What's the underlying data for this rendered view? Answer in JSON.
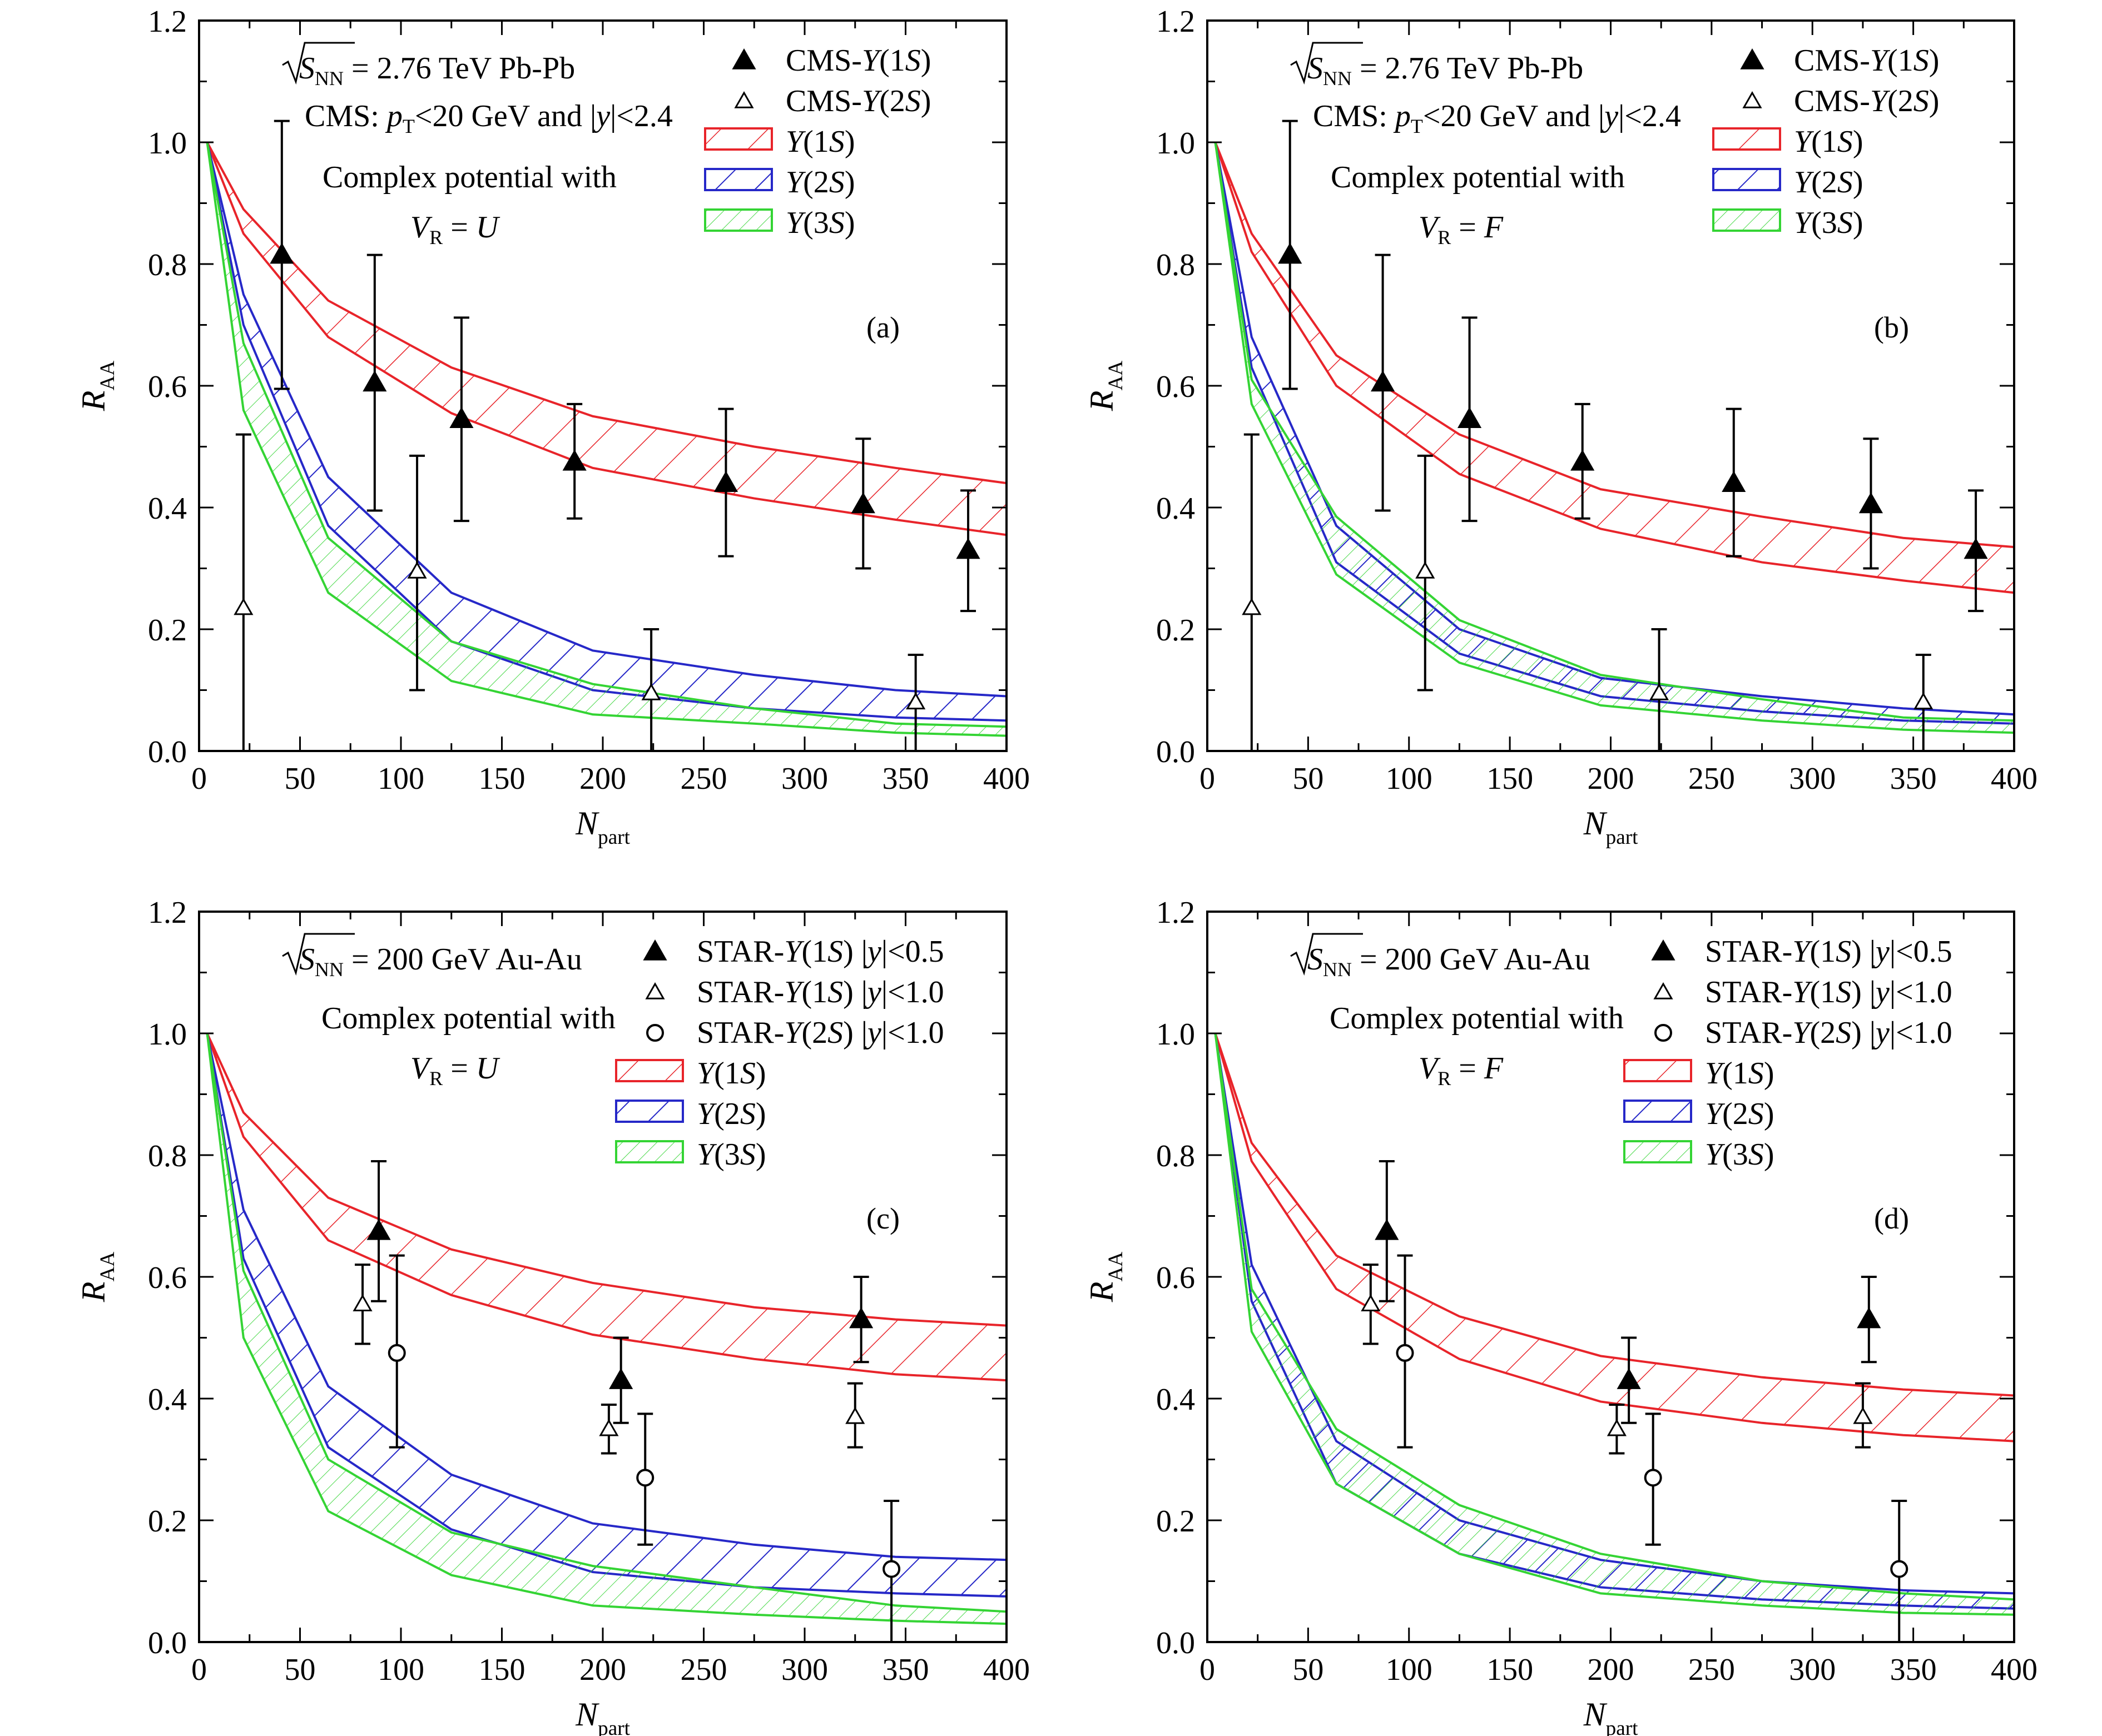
{
  "colors": {
    "y1s": "#e8242a",
    "y2s": "#2628c8",
    "y3s": "#34d434",
    "data": "#000000"
  },
  "chart_data": [
    {
      "type": "area",
      "panel_label": "(a)",
      "energy": "= 2.76 TeV   Pb-Pb",
      "cut": "CMS: pT<20 GeV and |y|<2.4",
      "text1": "Complex potential with",
      "text2": "V_R = U",
      "xlabel": "N_part",
      "ylabel": "R_AA",
      "xlim": [
        0,
        400
      ],
      "ylim": [
        0,
        1.2
      ],
      "xticks": [
        "0",
        "50",
        "100",
        "150",
        "200",
        "250",
        "300",
        "350",
        "400"
      ],
      "yticks": [
        "0.0",
        "0.2",
        "0.4",
        "0.6",
        "0.8",
        "1.0",
        "1.2"
      ],
      "x": [
        4,
        22,
        64,
        125,
        195,
        275,
        345,
        400
      ],
      "bands": [
        {
          "name": "Y(1S)",
          "upper": [
            1.0,
            0.89,
            0.74,
            0.63,
            0.55,
            0.5,
            0.465,
            0.44
          ],
          "lower": [
            1.0,
            0.85,
            0.68,
            0.555,
            0.465,
            0.415,
            0.38,
            0.355
          ]
        },
        {
          "name": "Y(2S)",
          "upper": [
            1.0,
            0.75,
            0.45,
            0.26,
            0.165,
            0.125,
            0.1,
            0.09
          ],
          "lower": [
            1.0,
            0.7,
            0.37,
            0.18,
            0.1,
            0.07,
            0.055,
            0.05
          ]
        },
        {
          "name": "Y(3S)",
          "upper": [
            1.0,
            0.67,
            0.35,
            0.18,
            0.11,
            0.07,
            0.045,
            0.04
          ],
          "lower": [
            1.0,
            0.56,
            0.26,
            0.115,
            0.06,
            0.045,
            0.03,
            0.025
          ]
        }
      ],
      "data_series": [
        {
          "name": "CMS-Y(1S)",
          "marker": "filled-triangle",
          "points": [
            {
              "x": 41,
              "y": 0.815,
              "lo": 0.595,
              "hi": 1.035
            },
            {
              "x": 87,
              "y": 0.605,
              "lo": 0.395,
              "hi": 0.815
            },
            {
              "x": 130,
              "y": 0.545,
              "lo": 0.378,
              "hi": 0.712
            },
            {
              "x": 186,
              "y": 0.475,
              "lo": 0.382,
              "hi": 0.57
            },
            {
              "x": 261,
              "y": 0.44,
              "lo": 0.32,
              "hi": 0.562
            },
            {
              "x": 329,
              "y": 0.405,
              "lo": 0.3,
              "hi": 0.513
            },
            {
              "x": 381,
              "y": 0.33,
              "lo": 0.23,
              "hi": 0.428
            }
          ]
        },
        {
          "name": "CMS-Y(2S)",
          "marker": "open-triangle",
          "points": [
            {
              "x": 22,
              "y": 0.235,
              "lo": 0.0,
              "hi": 0.52
            },
            {
              "x": 108,
              "y": 0.295,
              "lo": 0.1,
              "hi": 0.485
            },
            {
              "x": 224,
              "y": 0.095,
              "lo": 0.0,
              "hi": 0.2
            },
            {
              "x": 355,
              "y": 0.08,
              "lo": 0.0,
              "hi": 0.158
            }
          ]
        }
      ],
      "legend": [
        "CMS-Y(1S)",
        "CMS-Y(2S)",
        "Y(1S)",
        "Y(2S)",
        "Y(3S)"
      ]
    },
    {
      "type": "area",
      "panel_label": "(b)",
      "energy": "= 2.76 TeV   Pb-Pb",
      "cut": "CMS: pT<20 GeV and |y|<2.4",
      "text1": "Complex potential with",
      "text2": "V_R = F",
      "xlabel": "N_part",
      "ylabel": "R_AA",
      "xlim": [
        0,
        400
      ],
      "ylim": [
        0,
        1.2
      ],
      "xticks": [
        "0",
        "50",
        "100",
        "150",
        "200",
        "250",
        "300",
        "350",
        "400"
      ],
      "yticks": [
        "0.0",
        "0.2",
        "0.4",
        "0.6",
        "0.8",
        "1.0",
        "1.2"
      ],
      "x": [
        4,
        22,
        64,
        125,
        195,
        275,
        345,
        400
      ],
      "bands": [
        {
          "name": "Y(1S)",
          "upper": [
            1.0,
            0.85,
            0.65,
            0.52,
            0.43,
            0.385,
            0.35,
            0.335
          ],
          "lower": [
            1.0,
            0.82,
            0.6,
            0.455,
            0.365,
            0.31,
            0.28,
            0.26
          ]
        },
        {
          "name": "Y(2S)",
          "upper": [
            1.0,
            0.68,
            0.37,
            0.2,
            0.12,
            0.09,
            0.07,
            0.06
          ],
          "lower": [
            1.0,
            0.63,
            0.31,
            0.16,
            0.09,
            0.065,
            0.05,
            0.045
          ]
        },
        {
          "name": "Y(3S)",
          "upper": [
            1.0,
            0.61,
            0.385,
            0.215,
            0.125,
            0.085,
            0.055,
            0.05
          ],
          "lower": [
            1.0,
            0.57,
            0.29,
            0.145,
            0.075,
            0.05,
            0.035,
            0.03
          ]
        }
      ],
      "data_series": [
        {
          "name": "CMS-Y(1S)",
          "marker": "filled-triangle",
          "points": [
            {
              "x": 41,
              "y": 0.815,
              "lo": 0.595,
              "hi": 1.035
            },
            {
              "x": 87,
              "y": 0.605,
              "lo": 0.395,
              "hi": 0.815
            },
            {
              "x": 130,
              "y": 0.545,
              "lo": 0.378,
              "hi": 0.712
            },
            {
              "x": 186,
              "y": 0.475,
              "lo": 0.382,
              "hi": 0.57
            },
            {
              "x": 261,
              "y": 0.44,
              "lo": 0.32,
              "hi": 0.562
            },
            {
              "x": 329,
              "y": 0.405,
              "lo": 0.3,
              "hi": 0.513
            },
            {
              "x": 381,
              "y": 0.33,
              "lo": 0.23,
              "hi": 0.428
            }
          ]
        },
        {
          "name": "CMS-Y(2S)",
          "marker": "open-triangle",
          "points": [
            {
              "x": 22,
              "y": 0.235,
              "lo": 0.0,
              "hi": 0.52
            },
            {
              "x": 108,
              "y": 0.295,
              "lo": 0.1,
              "hi": 0.485
            },
            {
              "x": 224,
              "y": 0.095,
              "lo": 0.0,
              "hi": 0.2
            },
            {
              "x": 355,
              "y": 0.08,
              "lo": 0.0,
              "hi": 0.158
            }
          ]
        }
      ],
      "legend": [
        "CMS-Y(1S)",
        "CMS-Y(2S)",
        "Y(1S)",
        "Y(2S)",
        "Y(3S)"
      ]
    },
    {
      "type": "area",
      "panel_label": "(c)",
      "energy": "= 200 GeV   Au-Au",
      "cut": "",
      "text1": "Complex potential with",
      "text2": "V_R = U",
      "xlabel": "N_part",
      "ylabel": "R_AA",
      "xlim": [
        0,
        400
      ],
      "ylim": [
        0,
        1.2
      ],
      "xticks": [
        "0",
        "50",
        "100",
        "150",
        "200",
        "250",
        "300",
        "350",
        "400"
      ],
      "yticks": [
        "0.0",
        "0.2",
        "0.4",
        "0.6",
        "0.8",
        "1.0",
        "1.2"
      ],
      "x": [
        4,
        22,
        64,
        125,
        195,
        275,
        345,
        400
      ],
      "bands": [
        {
          "name": "Y(1S)",
          "upper": [
            1.0,
            0.87,
            0.73,
            0.645,
            0.59,
            0.55,
            0.53,
            0.52
          ],
          "lower": [
            1.0,
            0.83,
            0.66,
            0.57,
            0.505,
            0.465,
            0.44,
            0.43
          ]
        },
        {
          "name": "Y(2S)",
          "upper": [
            1.0,
            0.71,
            0.42,
            0.275,
            0.195,
            0.16,
            0.14,
            0.135
          ],
          "lower": [
            1.0,
            0.63,
            0.32,
            0.185,
            0.115,
            0.09,
            0.08,
            0.075
          ]
        },
        {
          "name": "Y(3S)",
          "upper": [
            1.0,
            0.61,
            0.3,
            0.18,
            0.125,
            0.09,
            0.06,
            0.05
          ],
          "lower": [
            1.0,
            0.5,
            0.215,
            0.11,
            0.06,
            0.045,
            0.035,
            0.03
          ]
        }
      ],
      "data_series": [
        {
          "name": "STAR-Y(1S) |y|<0.5",
          "marker": "filled-triangle",
          "points": [
            {
              "x": 89,
              "y": 0.675,
              "lo": 0.56,
              "hi": 0.79
            },
            {
              "x": 209,
              "y": 0.43,
              "lo": 0.36,
              "hi": 0.5
            },
            {
              "x": 328,
              "y": 0.53,
              "lo": 0.46,
              "hi": 0.6
            }
          ]
        },
        {
          "name": "STAR-Y(1S) |y|<1.0",
          "marker": "open-triangle",
          "points": [
            {
              "x": 81,
              "y": 0.555,
              "lo": 0.49,
              "hi": 0.62
            },
            {
              "x": 203,
              "y": 0.35,
              "lo": 0.31,
              "hi": 0.39
            },
            {
              "x": 325,
              "y": 0.37,
              "lo": 0.32,
              "hi": 0.425
            }
          ]
        },
        {
          "name": "STAR-Y(2S) |y|<1.0",
          "marker": "open-circle",
          "points": [
            {
              "x": 98,
              "y": 0.475,
              "lo": 0.32,
              "hi": 0.635
            },
            {
              "x": 221,
              "y": 0.27,
              "lo": 0.16,
              "hi": 0.375
            },
            {
              "x": 343,
              "y": 0.12,
              "lo": 0.0,
              "hi": 0.232
            }
          ]
        }
      ],
      "legend": [
        "STAR-Y(1S) |y|<0.5",
        "STAR-Y(1S) |y|<1.0",
        "STAR-Y(2S) |y|<1.0",
        "Y(1S)",
        "Y(2S)",
        "Y(3S)"
      ]
    },
    {
      "type": "area",
      "panel_label": "(d)",
      "energy": "= 200 GeV   Au-Au",
      "cut": "",
      "text1": "Complex potential with",
      "text2": "V_R = F",
      "xlabel": "N_part",
      "ylabel": "R_AA",
      "xlim": [
        0,
        400
      ],
      "ylim": [
        0,
        1.2
      ],
      "xticks": [
        "0",
        "50",
        "100",
        "150",
        "200",
        "250",
        "300",
        "350",
        "400"
      ],
      "yticks": [
        "0.0",
        "0.2",
        "0.4",
        "0.6",
        "0.8",
        "1.0",
        "1.2"
      ],
      "x": [
        4,
        22,
        64,
        125,
        195,
        275,
        345,
        400
      ],
      "bands": [
        {
          "name": "Y(1S)",
          "upper": [
            1.0,
            0.82,
            0.635,
            0.535,
            0.47,
            0.435,
            0.415,
            0.405
          ],
          "lower": [
            1.0,
            0.79,
            0.58,
            0.465,
            0.395,
            0.36,
            0.34,
            0.33
          ]
        },
        {
          "name": "Y(2S)",
          "upper": [
            1.0,
            0.62,
            0.33,
            0.2,
            0.135,
            0.1,
            0.085,
            0.08
          ],
          "lower": [
            1.0,
            0.56,
            0.26,
            0.145,
            0.09,
            0.07,
            0.06,
            0.055
          ]
        },
        {
          "name": "Y(3S)",
          "upper": [
            1.0,
            0.58,
            0.35,
            0.225,
            0.145,
            0.1,
            0.08,
            0.07
          ],
          "lower": [
            1.0,
            0.51,
            0.26,
            0.145,
            0.08,
            0.06,
            0.048,
            0.045
          ]
        }
      ],
      "data_series": [
        {
          "name": "STAR-Y(1S) |y|<0.5",
          "marker": "filled-triangle",
          "points": [
            {
              "x": 89,
              "y": 0.675,
              "lo": 0.56,
              "hi": 0.79
            },
            {
              "x": 209,
              "y": 0.43,
              "lo": 0.36,
              "hi": 0.5
            },
            {
              "x": 328,
              "y": 0.53,
              "lo": 0.46,
              "hi": 0.6
            }
          ]
        },
        {
          "name": "STAR-Y(1S) |y|<1.0",
          "marker": "open-triangle",
          "points": [
            {
              "x": 81,
              "y": 0.555,
              "lo": 0.49,
              "hi": 0.62
            },
            {
              "x": 203,
              "y": 0.35,
              "lo": 0.31,
              "hi": 0.39
            },
            {
              "x": 325,
              "y": 0.37,
              "lo": 0.32,
              "hi": 0.425
            }
          ]
        },
        {
          "name": "STAR-Y(2S) |y|<1.0",
          "marker": "open-circle",
          "points": [
            {
              "x": 98,
              "y": 0.475,
              "lo": 0.32,
              "hi": 0.635
            },
            {
              "x": 221,
              "y": 0.27,
              "lo": 0.16,
              "hi": 0.375
            },
            {
              "x": 343,
              "y": 0.12,
              "lo": 0.0,
              "hi": 0.232
            }
          ]
        }
      ],
      "legend": [
        "STAR-Y(1S) |y|<0.5",
        "STAR-Y(1S) |y|<1.0",
        "STAR-Y(2S) |y|<1.0",
        "Y(1S)",
        "Y(2S)",
        "Y(3S)"
      ]
    }
  ]
}
